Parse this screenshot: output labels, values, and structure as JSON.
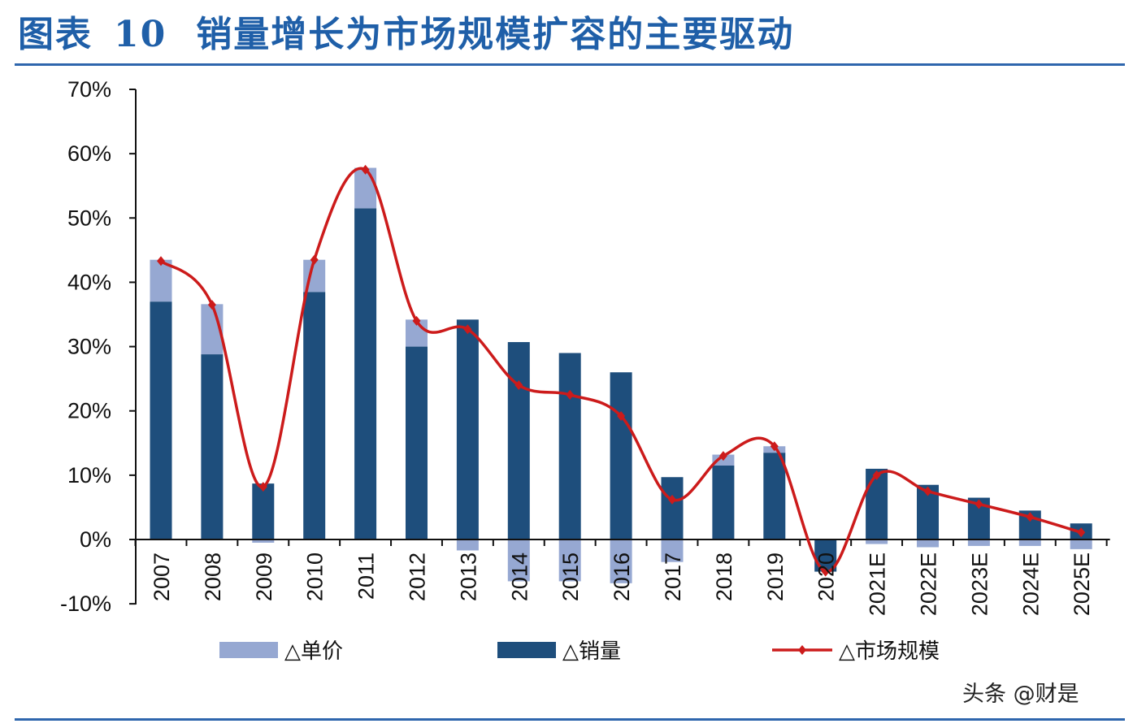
{
  "header": {
    "label": "图表",
    "number": "10",
    "text": "销量增长为市场规模扩容的主要驱动"
  },
  "watermark": "头条 @财是",
  "colors": {
    "title": "#1f5fa8",
    "rule": "#2e66ad",
    "unit_price_bar": "#96a8d2",
    "volume_bar": "#1e4e7c",
    "market_line": "#cc1b1b"
  },
  "chart_data": {
    "type": "bar+line",
    "categories": [
      "2007",
      "2008",
      "2009",
      "2010",
      "2011",
      "2012",
      "2013",
      "2014",
      "2015",
      "2016",
      "2017",
      "2018",
      "2019",
      "2020",
      "2021E",
      "2022E",
      "2023E",
      "2024E",
      "2025E"
    ],
    "ylim": [
      -0.1,
      0.7
    ],
    "yticks": [
      -0.1,
      0.0,
      0.1,
      0.2,
      0.3,
      0.4,
      0.5,
      0.6,
      0.7
    ],
    "ytick_labels": [
      "-10%",
      "0%",
      "10%",
      "20%",
      "30%",
      "40%",
      "50%",
      "60%",
      "70%"
    ],
    "stacked": true,
    "series": [
      {
        "name": "△销量",
        "kind": "bar",
        "values": [
          0.37,
          0.288,
          0.087,
          0.385,
          0.515,
          0.3,
          0.342,
          0.307,
          0.29,
          0.26,
          0.097,
          0.115,
          0.135,
          -0.05,
          0.11,
          0.085,
          0.065,
          0.045,
          0.025
        ]
      },
      {
        "name": "△单价",
        "kind": "bar",
        "values": [
          0.065,
          0.078,
          -0.005,
          0.05,
          0.063,
          0.042,
          -0.017,
          -0.065,
          -0.065,
          -0.068,
          -0.035,
          0.017,
          0.01,
          0.0,
          -0.007,
          -0.012,
          -0.01,
          -0.01,
          -0.015
        ]
      },
      {
        "name": "△市场规模",
        "kind": "line",
        "values": [
          0.433,
          0.365,
          0.082,
          0.435,
          0.575,
          0.34,
          0.327,
          0.24,
          0.225,
          0.192,
          0.062,
          0.13,
          0.145,
          -0.05,
          0.1,
          0.075,
          0.055,
          0.035,
          0.011
        ]
      }
    ],
    "legend": [
      "△单价",
      "△销量",
      "△市场规模"
    ],
    "legend_position": "bottom",
    "grid": false
  }
}
